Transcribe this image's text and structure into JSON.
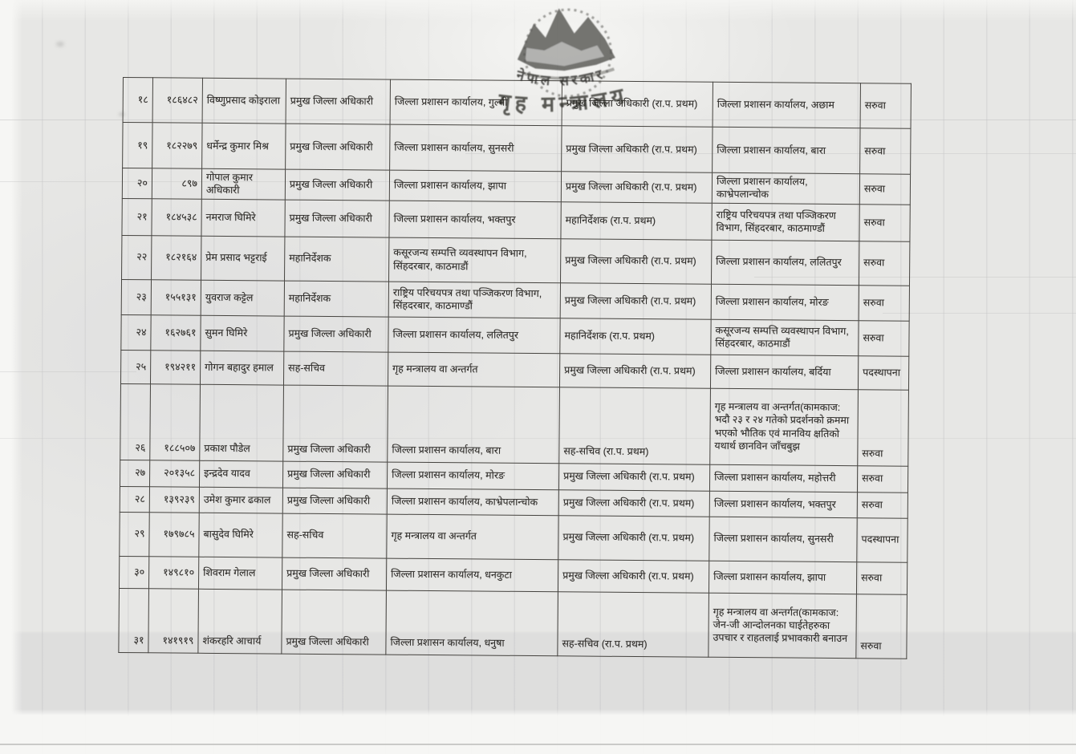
{
  "stamp": {
    "line1": "नेपाल सरकार",
    "line2": "गृह मन्त्रालय"
  },
  "table": {
    "rows": [
      {
        "sn": "१८",
        "id": "१८६४८२",
        "name": "विष्णुप्रसाद कोइराला",
        "position": "प्रमुख जिल्ला अधिकारी",
        "office": "जिल्ला प्रशासन कार्यालय, गुल्मी",
        "new_position": "प्रमुख जिल्ला अधिकारी (रा.प. प्रथम)",
        "new_office": "जिल्ला प्रशासन कार्यालय, अछाम",
        "remark": "सरुवा"
      },
      {
        "sn": "१९",
        "id": "१८२२७९",
        "name": "धर्मेन्द्र कुमार मिश्र",
        "position": "प्रमुख जिल्ला अधिकारी",
        "office": "जिल्ला प्रशासन कार्यालय, सुनसरी",
        "new_position": "प्रमुख जिल्ला अधिकारी (रा.प. प्रथम)",
        "new_office": "जिल्ला प्रशासन कार्यालय, बारा",
        "remark": "सरुवा"
      },
      {
        "sn": "२०",
        "id": "८९७",
        "name": "गोपाल कुमार अधिकारी",
        "position": "प्रमुख जिल्ला अधिकारी",
        "office": "जिल्ला प्रशासन कार्यालय, झापा",
        "new_position": "प्रमुख जिल्ला अधिकारी (रा.प. प्रथम)",
        "new_office": "जिल्ला प्रशासन कार्यालय, काभ्रेपलान्चोक",
        "remark": "सरुवा"
      },
      {
        "sn": "२१",
        "id": "१८४५३८",
        "name": "नमराज घिमिरे",
        "position": "प्रमुख जिल्ला अधिकारी",
        "office": "जिल्ला प्रशासन कार्यालय, भक्तपुर",
        "new_position": "महानिर्देशक (रा.प. प्रथम)",
        "new_office": "राष्ट्रिय परिचयपत्र तथा पञ्जिकरण विभाग, सिंहदरबार, काठमाण्डौं",
        "remark": "सरुवा"
      },
      {
        "sn": "२२",
        "id": "१८२१६४",
        "name": "प्रेम प्रसाद भट्टराई",
        "position": "महानिर्देशक",
        "office": "कसूरजन्य सम्पत्ति व्यवस्थापन विभाग, सिंहदरबार, काठमाडौं",
        "new_position": "प्रमुख जिल्ला अधिकारी (रा.प. प्रथम)",
        "new_office": "जिल्ला प्रशासन कार्यालय, ललितपुर",
        "remark": "सरुवा"
      },
      {
        "sn": "२३",
        "id": "१५५१३१",
        "name": "युवराज कट्टेल",
        "position": "महानिर्देशक",
        "office": "राष्ट्रिय परिचयपत्र तथा पञ्जिकरण विभाग, सिंहदरबार, काठमाण्डौं",
        "new_position": "प्रमुख जिल्ला अधिकारी (रा.प. प्रथम)",
        "new_office": "जिल्ला प्रशासन कार्यालय, मोरङ",
        "remark": "सरुवा"
      },
      {
        "sn": "२४",
        "id": "१६२७६१",
        "name": "सुमन घिमिरे",
        "position": "प्रमुख जिल्ला अधिकारी",
        "office": "जिल्ला प्रशासन कार्यालय, ललितपुर",
        "new_position": "महानिर्देशक (रा.प. प्रथम)",
        "new_office": "कसूरजन्य सम्पत्ति व्यवस्थापन विभाग, सिंहदरबार, काठमाडौं",
        "remark": "सरुवा"
      },
      {
        "sn": "२५",
        "id": "१९४२११",
        "name": "गोगन बहादुर हमाल",
        "position": "सह-सचिव",
        "office": "गृह मन्त्रालय वा अन्तर्गत",
        "new_position": "प्रमुख जिल्ला अधिकारी (रा.प. प्रथम)",
        "new_office": "जिल्ला प्रशासन कार्यालय, बर्दिया",
        "remark": "पदस्थापना"
      },
      {
        "sn": "२६",
        "id": "१८८५०७",
        "name": "प्रकाश पौडेल",
        "position": "प्रमुख जिल्ला अधिकारी",
        "office": "जिल्ला प्रशासन कार्यालय, बारा",
        "new_position": "सह-सचिव (रा.प. प्रथम)",
        "new_office": "गृह मन्त्रालय वा अन्तर्गत(कामकाज: भदौ २३ र २४ गतेको प्रदर्शनको क्रममा भएको भौतिक एवं मानविय क्षतिको यथार्थ छानविन जाँचबुझ",
        "remark": "सरुवा"
      },
      {
        "sn": "२७",
        "id": "२०१३५८",
        "name": "इन्द्रदेव यादव",
        "position": "प्रमुख जिल्ला अधिकारी",
        "office": "जिल्ला प्रशासन कार्यालय, मोरङ",
        "new_position": "प्रमुख जिल्ला अधिकारी (रा.प. प्रथम)",
        "new_office": "जिल्ला प्रशासन कार्यालय, महोत्तरी",
        "remark": "सरुवा"
      },
      {
        "sn": "२८",
        "id": "१३९२३९",
        "name": "उमेश कुमार ढकाल",
        "position": "प्रमुख जिल्ला अधिकारी",
        "office": "जिल्ला प्रशासन कार्यालय, काभ्रेपलान्चोक",
        "new_position": "प्रमुख जिल्ला अधिकारी (रा.प. प्रथम)",
        "new_office": "जिल्ला प्रशासन कार्यालय, भक्तपुर",
        "remark": "सरुवा"
      },
      {
        "sn": "२९",
        "id": "१७९७८५",
        "name": "बासुदेव घिमिरे",
        "position": "सह-सचिव",
        "office": "गृह मन्त्रालय वा अन्तर्गत",
        "new_position": "प्रमुख जिल्ला अधिकारी (रा.प. प्रथम)",
        "new_office": "जिल्ला प्रशासन कार्यालय, सुनसरी",
        "remark": "पदस्थापना"
      },
      {
        "sn": "३०",
        "id": "१४९८१०",
        "name": "शिवराम गेलाल",
        "position": "प्रमुख जिल्ला अधिकारी",
        "office": "जिल्ला प्रशासन कार्यालय, धनकुटा",
        "new_position": "प्रमुख जिल्ला अधिकारी (रा.प. प्रथम)",
        "new_office": "जिल्ला प्रशासन कार्यालय, झापा",
        "remark": "सरुवा"
      },
      {
        "sn": "३१",
        "id": "१४१९१९",
        "name": "शंकरहरि आचार्य",
        "position": "प्रमुख जिल्ला अधिकारी",
        "office": "जिल्ला प्रशासन कार्यालय, धनुषा",
        "new_position": "सह-सचिव (रा.प. प्रथम)",
        "new_office": "गृह मन्त्रालय वा अन्तर्गत(कामकाज: जेन-जी आन्दोलनका घाईतेहरुका उपचार र राहतलाई प्रभावकारी बनाउन",
        "remark": "सरुवा"
      }
    ]
  }
}
